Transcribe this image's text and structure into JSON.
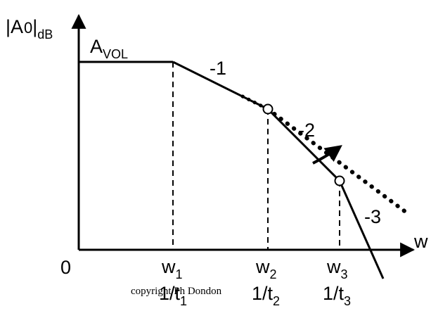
{
  "y_axis": {
    "main": "|A",
    "zero": "0",
    "close": "|",
    "sub": "dB"
  },
  "x_axis": {
    "label": "w"
  },
  "origin": "0",
  "gain": {
    "main": "A",
    "sub": "VOL"
  },
  "slopes": {
    "first": "-1",
    "second": "-2",
    "third": "-3"
  },
  "ticks": [
    {
      "w_main": "w",
      "w_sub": "1",
      "t_main": "1/t",
      "t_sub": "1"
    },
    {
      "w_main": "w",
      "w_sub": "2",
      "t_main": "1/t",
      "t_sub": "2"
    },
    {
      "w_main": "w",
      "w_sub": "3",
      "t_main": "1/t",
      "t_sub": "3"
    }
  ],
  "copyright": "copyright Ph Dondon"
}
